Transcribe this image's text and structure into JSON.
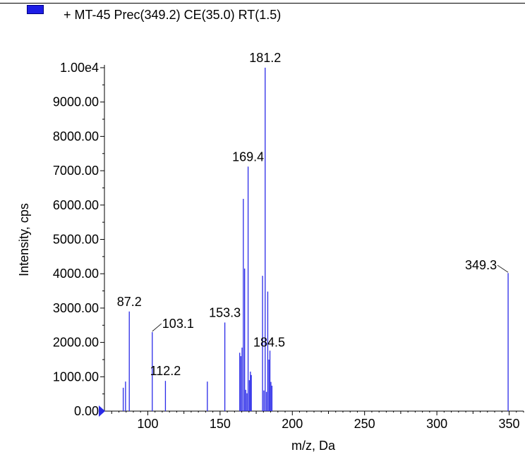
{
  "legend": {
    "label": "+ MT-45 Prec(349.2) CE(35.0) RT(1.5)",
    "color": "#1d1de6"
  },
  "chart_data": {
    "type": "bar",
    "xlabel": "m/z, Da",
    "ylabel": "Intensity, cps",
    "xlim": [
      70,
      360
    ],
    "ylim": [
      0,
      10000
    ],
    "x_ticks": [
      100,
      150,
      200,
      250,
      300,
      350
    ],
    "x_tick_labels": [
      "100",
      "150",
      "200",
      "250",
      "300",
      "350"
    ],
    "y_ticks": [
      0,
      1000,
      2000,
      3000,
      4000,
      5000,
      6000,
      7000,
      8000,
      9000,
      10000
    ],
    "y_tick_labels": [
      "0.00",
      "1000.00",
      "2000.00",
      "3000.00",
      "4000.00",
      "5000.00",
      "6000.00",
      "7000.00",
      "8000.00",
      "9000.00",
      "1.00e4"
    ],
    "series_color": "#2a2ae8",
    "peaks": [
      {
        "x": 83.0,
        "y": 680
      },
      {
        "x": 84.6,
        "y": 860
      },
      {
        "x": 87.2,
        "y": 2900
      },
      {
        "x": 103.1,
        "y": 2300
      },
      {
        "x": 112.2,
        "y": 880
      },
      {
        "x": 141.2,
        "y": 860
      },
      {
        "x": 153.3,
        "y": 2580
      },
      {
        "x": 163.6,
        "y": 1700
      },
      {
        "x": 164.4,
        "y": 1600
      },
      {
        "x": 165.2,
        "y": 1850
      },
      {
        "x": 166.1,
        "y": 6180
      },
      {
        "x": 167.0,
        "y": 4150
      },
      {
        "x": 167.8,
        "y": 620
      },
      {
        "x": 168.6,
        "y": 520
      },
      {
        "x": 169.4,
        "y": 7120
      },
      {
        "x": 170.3,
        "y": 900
      },
      {
        "x": 171.0,
        "y": 1150
      },
      {
        "x": 171.6,
        "y": 1050
      },
      {
        "x": 179.4,
        "y": 3940
      },
      {
        "x": 180.3,
        "y": 600
      },
      {
        "x": 181.2,
        "y": 10000
      },
      {
        "x": 182.1,
        "y": 560
      },
      {
        "x": 183.0,
        "y": 3480
      },
      {
        "x": 183.8,
        "y": 1500
      },
      {
        "x": 184.5,
        "y": 1760
      },
      {
        "x": 185.2,
        "y": 850
      },
      {
        "x": 185.9,
        "y": 740
      },
      {
        "x": 349.3,
        "y": 4020
      }
    ],
    "annotations": [
      {
        "text": "181.2",
        "x": 181.2,
        "y": 10000,
        "dx": 0,
        "dy": -8,
        "anchor": "middle",
        "leader": false
      },
      {
        "text": "169.4",
        "x": 169.4,
        "y": 7120,
        "dx": 0,
        "dy": -8,
        "anchor": "middle",
        "leader": false
      },
      {
        "text": "349.3",
        "x": 349.3,
        "y": 4020,
        "dx": -16,
        "dy": -5,
        "anchor": "end",
        "leader": true
      },
      {
        "text": "87.2",
        "x": 87.2,
        "y": 2900,
        "dx": 0,
        "dy": -8,
        "anchor": "middle",
        "leader": false
      },
      {
        "text": "153.3",
        "x": 153.3,
        "y": 2580,
        "dx": 0,
        "dy": -8,
        "anchor": "middle",
        "leader": false
      },
      {
        "text": "103.1",
        "x": 103.1,
        "y": 2300,
        "dx": 14,
        "dy": -6,
        "anchor": "start",
        "leader": true
      },
      {
        "text": "184.5",
        "x": 184.5,
        "y": 1760,
        "dx": -1,
        "dy": -6,
        "anchor": "middle",
        "leader": false
      },
      {
        "text": "112.2",
        "x": 112.2,
        "y": 880,
        "dx": 0,
        "dy": -8,
        "anchor": "middle",
        "leader": false
      }
    ]
  }
}
